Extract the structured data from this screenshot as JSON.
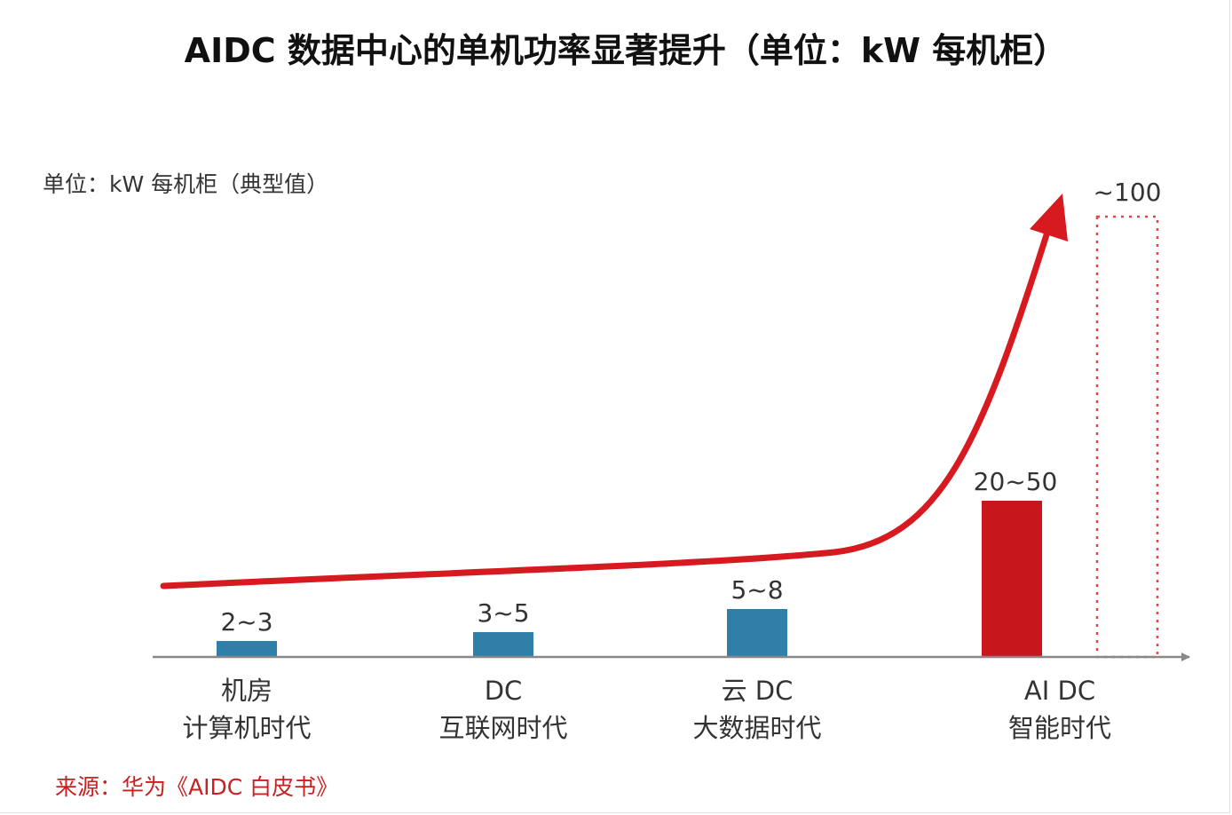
{
  "chart_data": {
    "type": "bar",
    "title": "AIDC 数据中心的单机功率显著提升（单位：kW 每机柜）",
    "unit_label": "单位：kW 每机柜（典型值）",
    "categories": [
      [
        "机房",
        "计算机时代"
      ],
      [
        "DC",
        "互联网时代"
      ],
      [
        "云 DC",
        "大数据时代"
      ],
      [
        "AI DC",
        "智能时代"
      ]
    ],
    "value_labels": [
      "2~3",
      "3~5",
      "5~8",
      "20~50"
    ],
    "values": [
      2.5,
      4,
      6.5,
      35
    ],
    "projected": {
      "label": "~100",
      "value": 100
    },
    "bar_colors": [
      "#2f7fa8",
      "#2f7fa8",
      "#2f7fa8",
      "#c8161d"
    ],
    "trend_color": "#d71920",
    "projection_color": "#e04848",
    "axis_color": "#888888",
    "source": "来源：华为《AIDC 白皮书》"
  }
}
